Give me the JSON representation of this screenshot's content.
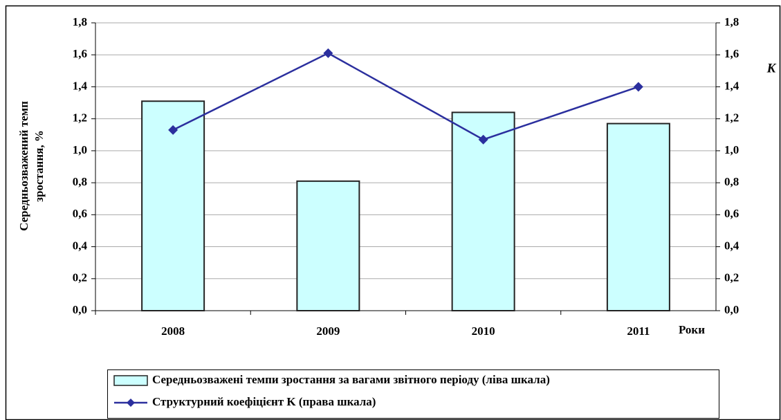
{
  "chart_data": {
    "type": "bar-line",
    "categories": [
      "2008",
      "2009",
      "2010",
      "2011"
    ],
    "series": [
      {
        "name": "Середньозважені темпи зростання за вагами звітного періоду (ліва шкала)",
        "type": "bar",
        "color": "#ccffff",
        "values": [
          1.31,
          0.81,
          1.24,
          1.17
        ]
      },
      {
        "name": "Структурний коефіцієнт K (права шкала)",
        "type": "line",
        "axis": "y2",
        "color": "#2b2f9e",
        "values": [
          1.13,
          1.61,
          1.07,
          1.4
        ]
      }
    ],
    "ylabel": [
      "Середньозважений темп",
      "зростання, %"
    ],
    "y2label": "K",
    "xlabel": "Роки",
    "ylim": [
      0,
      1.8
    ],
    "yticks": [
      {
        "value": 0,
        "label": "0,0"
      },
      {
        "value": 0.2,
        "label": "0,2"
      },
      {
        "value": 0.4,
        "label": "0,4"
      },
      {
        "value": 0.6,
        "label": "0,6"
      },
      {
        "value": 0.8,
        "label": "0,8"
      },
      {
        "value": 1.0,
        "label": "1,0"
      },
      {
        "value": 1.2,
        "label": "1,2"
      },
      {
        "value": 1.4,
        "label": "1,4"
      },
      {
        "value": 1.6,
        "label": "1,6"
      },
      {
        "value": 1.8,
        "label": "1,8"
      }
    ],
    "y2lim": [
      0,
      1.8
    ],
    "y2ticks": [
      {
        "value": 0,
        "label": "0,0"
      },
      {
        "value": 0.2,
        "label": "0,2"
      },
      {
        "value": 0.4,
        "label": "0,4"
      },
      {
        "value": 0.6,
        "label": "0,6"
      },
      {
        "value": 0.8,
        "label": "0,8"
      },
      {
        "value": 1.0,
        "label": "1,0"
      },
      {
        "value": 1.2,
        "label": "1,2"
      },
      {
        "value": 1.4,
        "label": "1,4"
      },
      {
        "value": 1.6,
        "label": "1,6"
      },
      {
        "value": 1.8,
        "label": "1,8"
      }
    ],
    "grid": true,
    "legend": "bottom"
  }
}
